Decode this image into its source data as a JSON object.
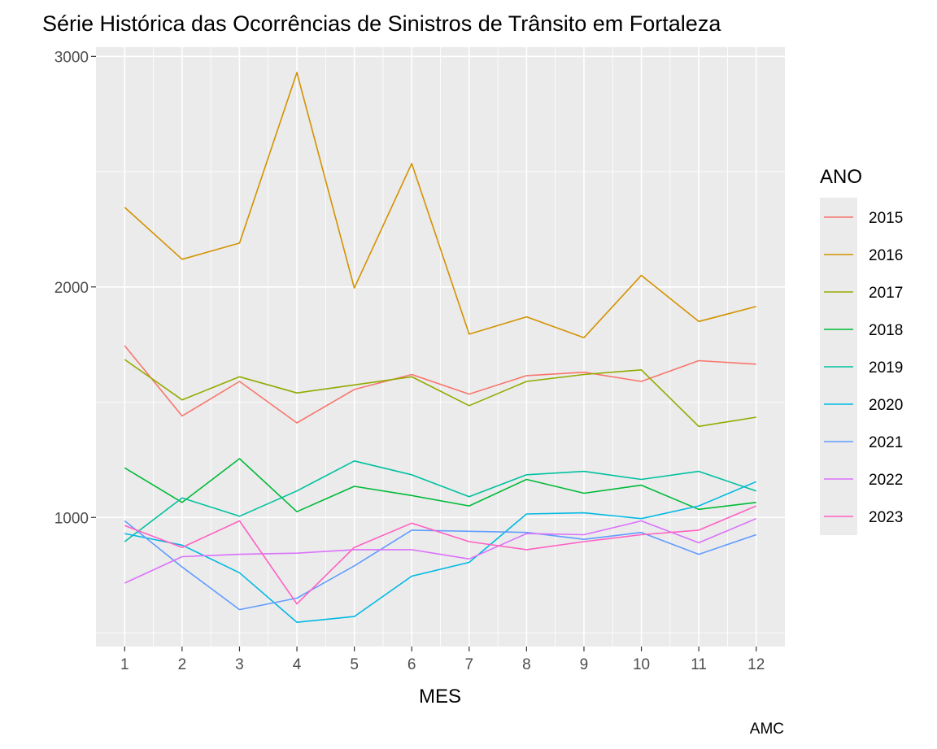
{
  "chart_data": {
    "type": "line",
    "title": "Série Histórica das Ocorrências de Sinistros de Trânsito em Fortaleza",
    "xlabel": "MES",
    "ylabel": "",
    "caption": "AMC",
    "legend_title": "ANO",
    "legend_position": "right",
    "grid": true,
    "x": [
      1,
      2,
      3,
      4,
      5,
      6,
      7,
      8,
      9,
      10,
      11,
      12
    ],
    "xlim": [
      0.5,
      12.5
    ],
    "ylim": [
      440,
      3040
    ],
    "yticks": [
      1000,
      2000,
      3000
    ],
    "series": [
      {
        "name": "2015",
        "color": "#F8766D",
        "values": [
          1745,
          1440,
          1590,
          1410,
          1555,
          1620,
          1535,
          1615,
          1630,
          1590,
          1680,
          1665
        ]
      },
      {
        "name": "2016",
        "color": "#D39200",
        "values": [
          2345,
          2120,
          2190,
          2930,
          1995,
          2535,
          1795,
          1870,
          1780,
          2050,
          1850,
          1915
        ]
      },
      {
        "name": "2017",
        "color": "#93AA00",
        "values": [
          1685,
          1510,
          1610,
          1540,
          1575,
          1610,
          1485,
          1590,
          1620,
          1640,
          1395,
          1435
        ]
      },
      {
        "name": "2018",
        "color": "#00BA38",
        "values": [
          1215,
          1065,
          1255,
          1025,
          1135,
          1095,
          1050,
          1165,
          1105,
          1140,
          1035,
          1065
        ]
      },
      {
        "name": "2019",
        "color": "#00C19F",
        "values": [
          895,
          1085,
          1005,
          1115,
          1245,
          1185,
          1090,
          1185,
          1200,
          1165,
          1200,
          1115
        ]
      },
      {
        "name": "2020",
        "color": "#00B9E3",
        "values": [
          930,
          880,
          760,
          545,
          570,
          745,
          805,
          1015,
          1020,
          995,
          1050,
          1155
        ]
      },
      {
        "name": "2021",
        "color": "#619CFF",
        "values": [
          985,
          785,
          600,
          650,
          790,
          945,
          940,
          935,
          905,
          935,
          840,
          925
        ]
      },
      {
        "name": "2022",
        "color": "#DB72FB",
        "values": [
          715,
          830,
          840,
          845,
          860,
          860,
          820,
          930,
          925,
          985,
          890,
          995
        ]
      },
      {
        "name": "2023",
        "color": "#FF61C3",
        "values": [
          965,
          870,
          985,
          625,
          870,
          975,
          895,
          860,
          895,
          925,
          945,
          1050
        ]
      }
    ]
  }
}
